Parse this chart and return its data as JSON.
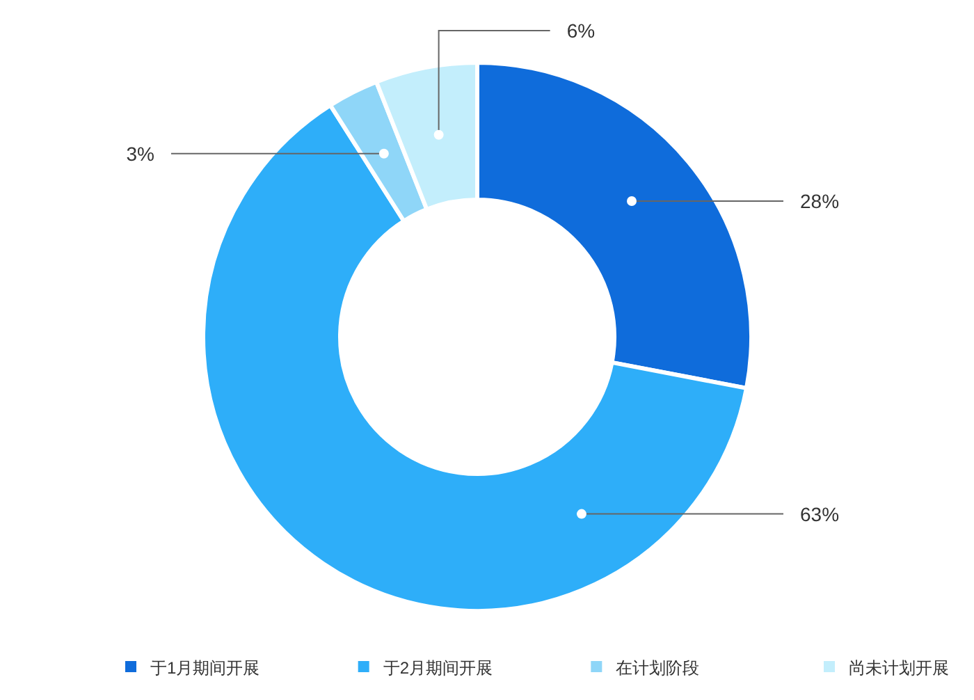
{
  "chart_data": {
    "type": "donut",
    "categories": [
      "于1月期间开展",
      "于2月期间开展",
      "在计划阶段",
      "尚未计划开展"
    ],
    "values": [
      28,
      63,
      3,
      6
    ],
    "colors": [
      "#0f6cdb",
      "#2eaef9",
      "#8fd6f8",
      "#c3eefc"
    ],
    "value_labels": [
      "28%",
      "63%",
      "3%",
      "6%"
    ],
    "legend": "bottom"
  }
}
